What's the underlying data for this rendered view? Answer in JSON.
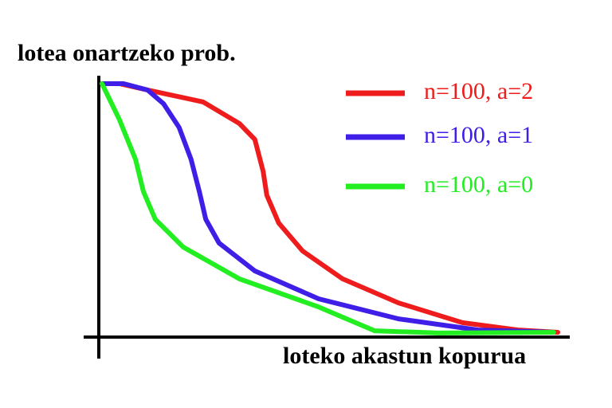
{
  "chart_data": {
    "type": "line",
    "y_label": "lotea onartzeko prob.",
    "x_label": "loteko akastun kopurua",
    "xlim": [
      0,
      1
    ],
    "ylim": [
      0,
      1
    ],
    "series": [
      {
        "name": "n=100, a=2",
        "color": "#ee1c1c",
        "x": [
          0.007,
          0.045,
          0.106,
          0.227,
          0.306,
          0.34,
          0.358,
          0.366,
          0.392,
          0.444,
          0.531,
          0.653,
          0.792,
          0.913,
          1.0
        ],
        "values": [
          1.0,
          1.0,
          0.975,
          0.928,
          0.843,
          0.78,
          0.654,
          0.56,
          0.45,
          0.34,
          0.23,
          0.135,
          0.057,
          0.028,
          0.019
        ]
      },
      {
        "name": "n=100, a=1",
        "color": "#3f1ee8",
        "x": [
          0.007,
          0.054,
          0.106,
          0.141,
          0.175,
          0.201,
          0.219,
          0.233,
          0.262,
          0.34,
          0.479,
          0.653,
          0.826,
          0.991
        ],
        "values": [
          1.0,
          1.0,
          0.975,
          0.921,
          0.827,
          0.701,
          0.575,
          0.465,
          0.371,
          0.261,
          0.151,
          0.072,
          0.028,
          0.019
        ]
      },
      {
        "name": "n=100, a=0",
        "color": "#22ee22",
        "x": [
          0.007,
          0.045,
          0.08,
          0.097,
          0.123,
          0.184,
          0.306,
          0.479,
          0.601,
          0.74,
          0.991
        ],
        "values": [
          1.0,
          0.858,
          0.701,
          0.575,
          0.465,
          0.355,
          0.23,
          0.119,
          0.025,
          0.016,
          0.019
        ]
      }
    ]
  }
}
